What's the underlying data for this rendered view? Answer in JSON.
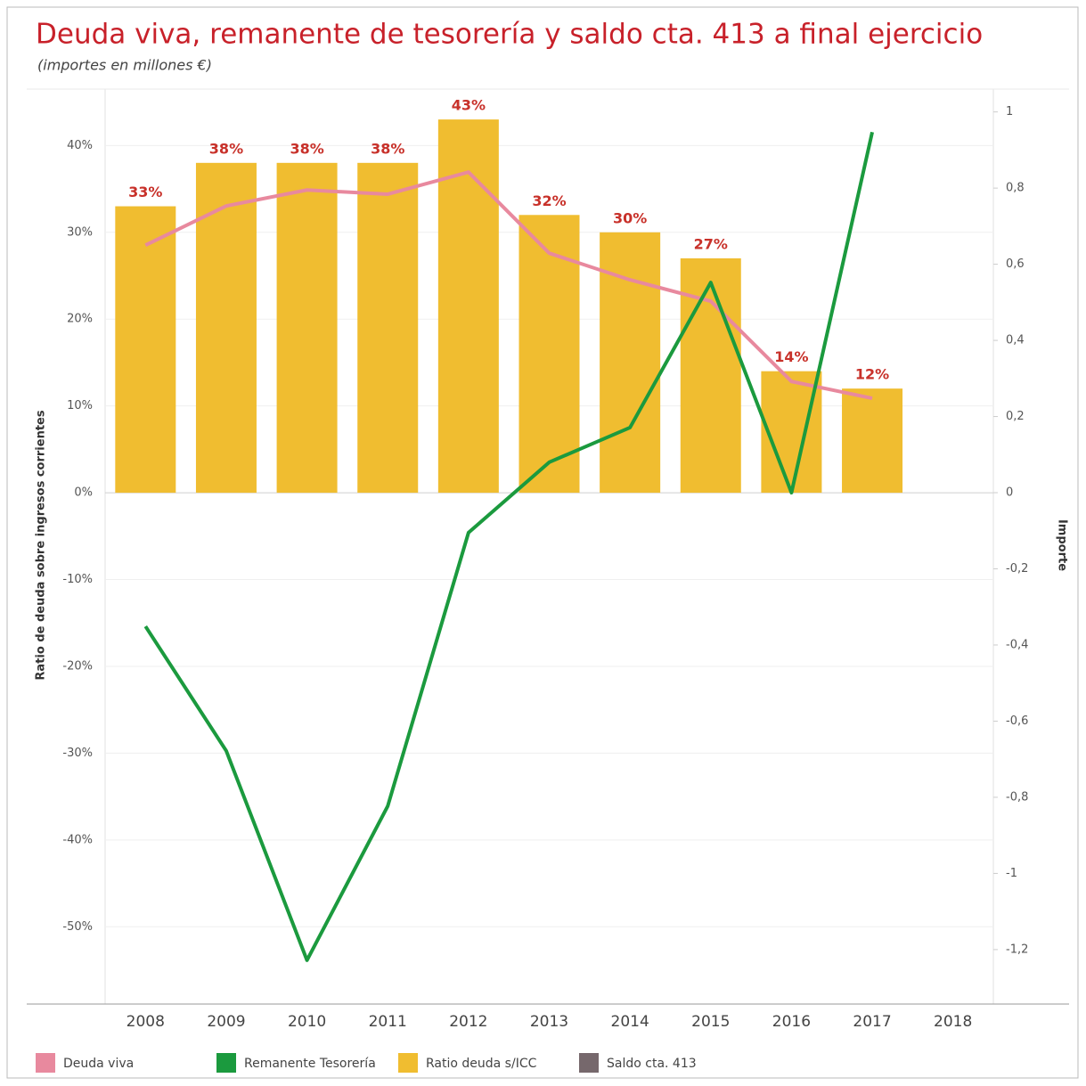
{
  "chart_data": {
    "type": "bar",
    "title": "Deuda viva, remanente de tesorería y saldo cta. 413  a final ejercicio",
    "subtitle": "(importes en millones €)",
    "y_label": "Ratio de deuda sobre ingresos corrientes",
    "y2_label": "Importe",
    "categories": [
      "2008",
      "2009",
      "2010",
      "2011",
      "2012",
      "2013",
      "2014",
      "2015",
      "2016",
      "2017",
      "2018"
    ],
    "series": [
      {
        "name": "Deuda viva",
        "color": "#e8899e",
        "type": "line",
        "axis": "y2",
        "values": [
          0.65,
          0.753,
          0.795,
          0.784,
          0.842,
          0.629,
          0.559,
          0.503,
          0.292,
          0.248,
          null
        ]
      },
      {
        "name": "Remanente Tesorería",
        "color": "#1b9a3e",
        "type": "line",
        "axis": "y2",
        "values": [
          -0.351,
          -0.678,
          -1.228,
          -0.823,
          -0.105,
          0.08,
          0.171,
          0.552,
          0.0,
          0.947,
          null
        ]
      },
      {
        "name": "Ratio deuda s/ICC",
        "color": "#f0bd30",
        "type": "bar",
        "values": [
          33,
          38,
          38,
          38,
          43,
          32,
          30,
          27,
          14,
          12,
          null
        ],
        "value_labels": [
          "33%",
          "38%",
          "38%",
          "38%",
          "43%",
          "32%",
          "30%",
          "27%",
          "14%",
          "12%",
          null
        ]
      },
      {
        "name": "Saldo cta. 413",
        "color": "#76686c",
        "type": "line",
        "axis": "y2",
        "values": [
          null,
          null,
          null,
          null,
          null,
          null,
          null,
          null,
          null,
          null,
          null
        ]
      }
    ],
    "ylim": [
      -58.9,
      46.5
    ],
    "yticks": [
      {
        "value": -50,
        "label": "-50%"
      },
      {
        "value": -40,
        "label": "-40%"
      },
      {
        "value": -30,
        "label": "-30%"
      },
      {
        "value": -20,
        "label": "-20%"
      },
      {
        "value": -10,
        "label": "-10%"
      },
      {
        "value": 0,
        "label": "0%"
      },
      {
        "value": 10,
        "label": "10%"
      },
      {
        "value": 20,
        "label": "20%"
      },
      {
        "value": 30,
        "label": "30%"
      },
      {
        "value": 40,
        "label": "40%"
      }
    ],
    "y2lim": [
      -1.343,
      1.06
    ],
    "y2ticks": [
      {
        "value": -1.2,
        "label": "-1,2"
      },
      -1,
      {
        "value": -0.8,
        "label": "-0,8"
      },
      {
        "value": -0.6,
        "label": "-0,6"
      },
      {
        "value": -0.4,
        "label": "-0,4"
      },
      {
        "value": -0.2,
        "label": "-0,2"
      },
      0,
      {
        "value": 0.2,
        "label": "0,2"
      },
      {
        "value": 0.4,
        "label": "0,4"
      },
      {
        "value": 0.6,
        "label": "0,6"
      },
      {
        "value": 0.8,
        "label": "0,8"
      },
      1
    ],
    "grid": true
  }
}
